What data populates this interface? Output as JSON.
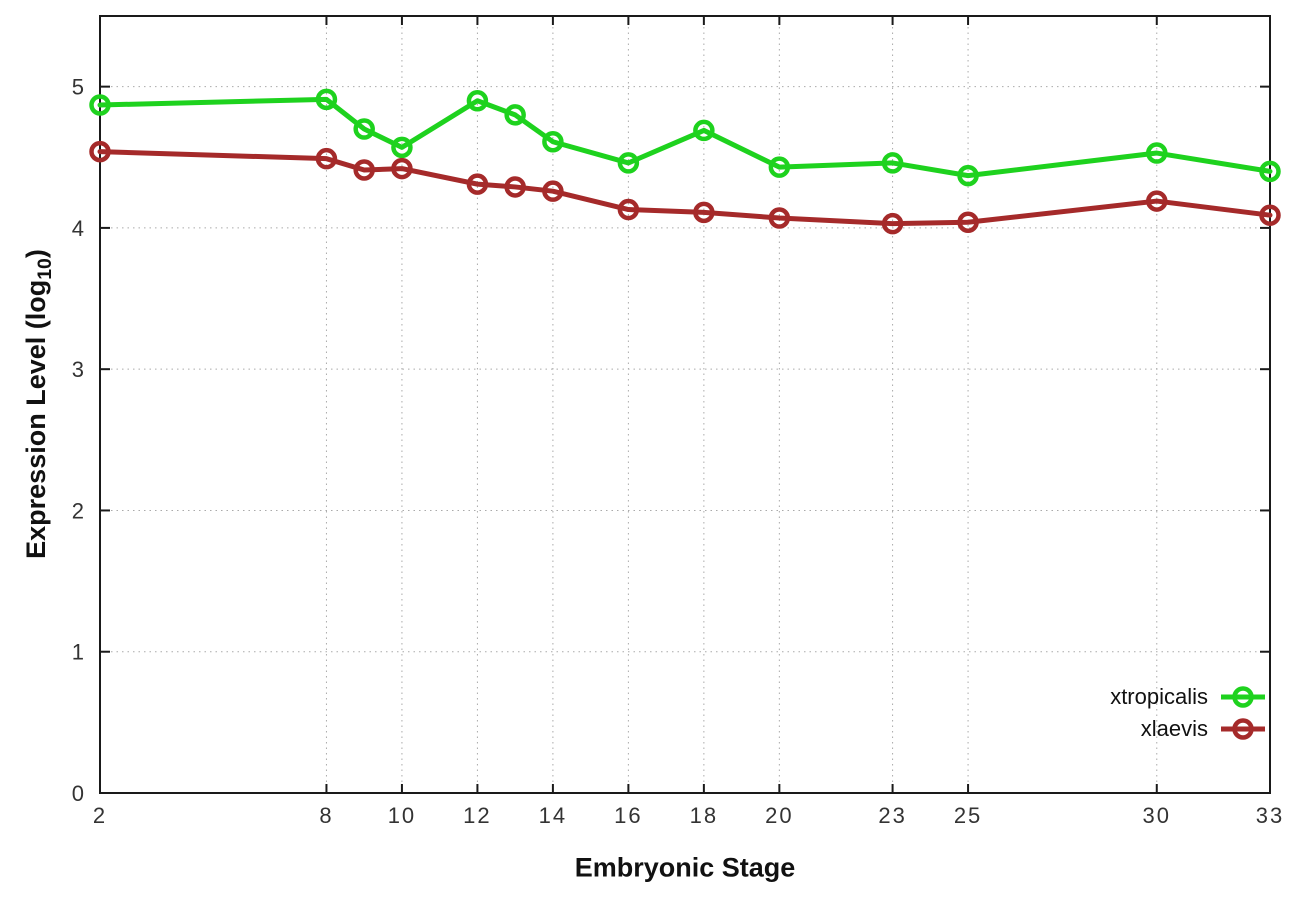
{
  "chart_data": {
    "type": "line",
    "title": "",
    "xlabel": "Embryonic Stage",
    "ylabel_parts": {
      "pre": "Expression Level (log",
      "sub": "10",
      "post": ")"
    },
    "x": [
      2,
      8,
      9,
      10,
      12,
      13,
      14,
      16,
      18,
      20,
      23,
      25,
      30,
      33
    ],
    "series": [
      {
        "name": "xtropicalis",
        "color": "#1ed21e",
        "values": [
          4.87,
          4.91,
          4.7,
          4.57,
          4.9,
          4.8,
          4.61,
          4.46,
          4.69,
          4.43,
          4.46,
          4.37,
          4.53,
          4.4
        ]
      },
      {
        "name": "xlaevis",
        "color": "#a52a2a",
        "values": [
          4.54,
          4.49,
          4.41,
          4.42,
          4.31,
          4.29,
          4.26,
          4.13,
          4.11,
          4.07,
          4.03,
          4.04,
          4.19,
          4.09
        ]
      }
    ],
    "xticks": [
      2,
      8,
      10,
      12,
      14,
      16,
      18,
      20,
      23,
      25,
      30,
      33
    ],
    "yticks": [
      0,
      1,
      2,
      3,
      4,
      5
    ],
    "xlim": [
      2,
      33
    ],
    "ylim": [
      0,
      5.5
    ],
    "grid": true,
    "legend_position": "bottom-right-inside",
    "style": {
      "grid_color": "#aaaaaa",
      "border_color": "#1a1a1a",
      "tick_label_color": "#333333",
      "background": "#ffffff"
    }
  }
}
